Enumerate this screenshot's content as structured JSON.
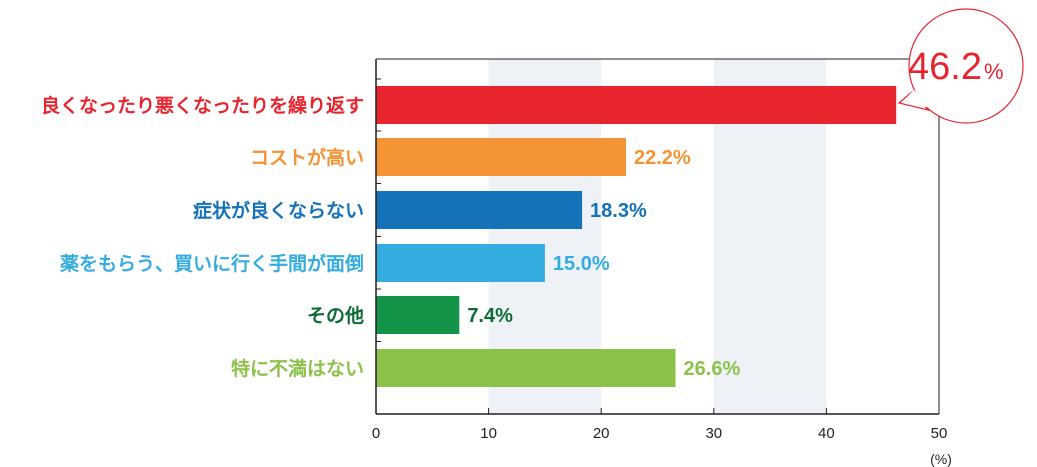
{
  "chart_data": {
    "type": "bar",
    "orientation": "horizontal",
    "title": "",
    "xlabel": "",
    "ylabel": "",
    "unit_label": "(%)",
    "xlim": [
      0,
      50
    ],
    "x_ticks": [
      "0",
      "10",
      "20",
      "30",
      "40",
      "50"
    ],
    "grid": "alternating vertical bands",
    "band_color": "#eef2f6",
    "categories": [
      "良くなったり悪くなったりを繰り返す",
      "コストが高い",
      "症状が良くならない",
      "薬をもらう、買いに行く手間が面倒",
      "その他",
      "特に不満はない"
    ],
    "values": [
      46.2,
      22.2,
      18.3,
      15.0,
      7.4,
      26.6
    ],
    "value_labels": [
      "46.2",
      "22.2%",
      "18.3%",
      "15.0%",
      "7.4%",
      "26.6%"
    ],
    "colors": [
      "#e8242f",
      "#f39333",
      "#1372b9",
      "#34ace0",
      "#139448",
      "#8cc24a"
    ],
    "label_colors": [
      "#e8242f",
      "#f39333",
      "#1372b9",
      "#34ace0",
      "#0d6b35",
      "#8cc24a"
    ],
    "callout": {
      "index": 0,
      "number": "46.2",
      "unit": "%",
      "color": "#e8242f"
    }
  }
}
